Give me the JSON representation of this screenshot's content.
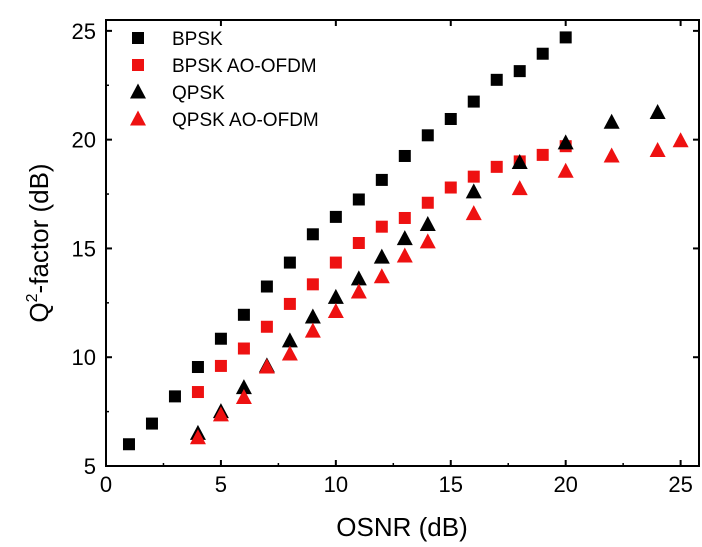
{
  "chart_data": {
    "type": "scatter",
    "xlabel": "OSNR (dB)",
    "ylabel_main": "Q",
    "ylabel_sup": "2",
    "ylabel_rest": "-factor (dB)",
    "xlim": [
      0,
      25.8
    ],
    "ylim": [
      5,
      25.5
    ],
    "xticks": [
      0,
      5,
      10,
      15,
      20,
      25
    ],
    "yticks": [
      5,
      10,
      15,
      20,
      25
    ],
    "grid": false,
    "legend_position": "top-left",
    "series": [
      {
        "name": "BPSK",
        "marker": "square",
        "color": "#000000",
        "x": [
          1,
          2,
          3,
          4,
          5,
          6,
          7,
          8,
          9,
          10,
          11,
          12,
          13,
          14,
          15,
          16,
          17,
          18,
          19,
          20
        ],
        "y": [
          6.0,
          6.95,
          8.2,
          9.55,
          10.85,
          11.95,
          13.25,
          14.35,
          15.65,
          16.45,
          17.25,
          18.15,
          19.25,
          20.2,
          20.95,
          21.75,
          22.75,
          23.15,
          23.95,
          24.7
        ]
      },
      {
        "name": "BPSK AO-OFDM",
        "marker": "square",
        "color": "#ee1111",
        "x": [
          4,
          5,
          6,
          7,
          8,
          9,
          10,
          11,
          12,
          13,
          14,
          15,
          16,
          17,
          18,
          19,
          20
        ],
        "y": [
          8.4,
          9.6,
          10.4,
          11.4,
          12.45,
          13.35,
          14.35,
          15.25,
          16.0,
          16.4,
          17.1,
          17.8,
          18.3,
          18.75,
          19.0,
          19.3,
          19.7
        ]
      },
      {
        "name": "QPSK",
        "marker": "triangle",
        "color": "#000000",
        "x": [
          4,
          5,
          6,
          7,
          8,
          9,
          10,
          11,
          12,
          13,
          14,
          16,
          18,
          20,
          22,
          24
        ],
        "y": [
          6.5,
          7.5,
          8.6,
          9.6,
          10.75,
          11.85,
          12.75,
          13.6,
          14.6,
          15.45,
          16.1,
          17.6,
          18.95,
          19.85,
          20.8,
          21.25
        ]
      },
      {
        "name": "QPSK AO-OFDM",
        "marker": "triangle",
        "color": "#ee1111",
        "x": [
          4,
          5,
          6,
          7,
          8,
          9,
          10,
          11,
          12,
          13,
          14,
          16,
          18,
          20,
          22,
          24,
          25
        ],
        "y": [
          6.3,
          7.35,
          8.15,
          9.55,
          10.15,
          11.2,
          12.1,
          13.0,
          13.7,
          14.65,
          15.3,
          16.6,
          17.75,
          18.55,
          19.25,
          19.5,
          19.95
        ]
      }
    ]
  }
}
